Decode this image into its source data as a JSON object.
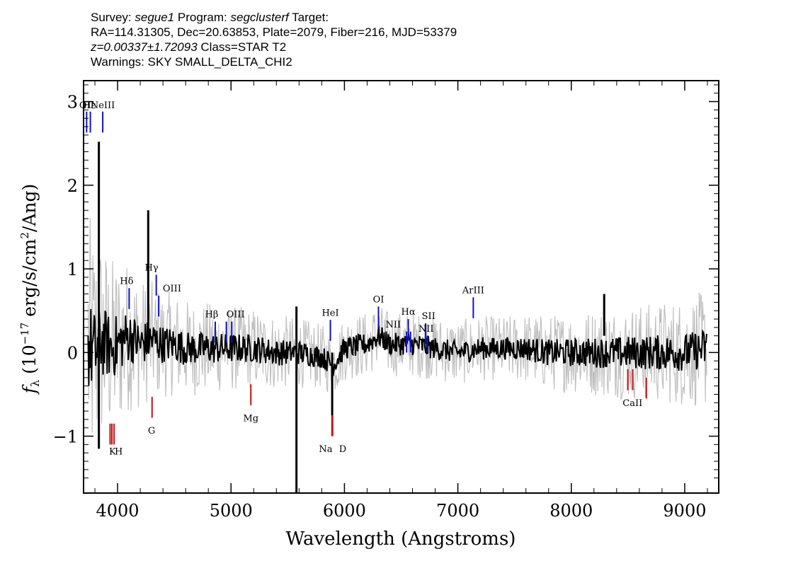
{
  "header": {
    "line1": {
      "survey_label": "Survey: ",
      "survey": "segue1",
      "program_label": " Program: ",
      "program": "segclusterf",
      "target_label": " Target:"
    },
    "line2": "RA=114.31305, Dec=20.63853, Plate=2079, Fiber=216, MJD=53379",
    "line3": {
      "z": "z=0.00337±1.72093",
      "class": " Class=STAR T2"
    },
    "line4": "Warnings: SKY SMALL_DELTA_CHI2"
  },
  "chart_data": {
    "type": "line",
    "xlabel": "Wavelength (Angstroms)",
    "ylabel": "f_λ (10^-17 erg/s/cm^2/Ang)",
    "ylabel_parts": {
      "f": "f",
      "sub": "λ",
      "a": " (10",
      "exp1": "−17",
      "b": " erg/s/cm",
      "exp2": "2",
      "c": "/Ang)"
    },
    "xlim": [
      3700,
      9300
    ],
    "ylim": [
      -1.68,
      3.25
    ],
    "x_ticks": [
      4000,
      5000,
      6000,
      7000,
      8000,
      9000
    ],
    "x_tick_labels": [
      "4000",
      "5000",
      "6000",
      "7000",
      "8000",
      "9000"
    ],
    "y_ticks": [
      -1,
      0,
      1,
      2,
      3
    ],
    "y_tick_labels": [
      "−1",
      "0",
      "1",
      "2",
      "3"
    ],
    "series": [
      {
        "role": "flux",
        "color": "#000000",
        "x": [
          3720,
          3760,
          3800,
          3850,
          3900,
          3950,
          4000,
          4100,
          4200,
          4300,
          4400,
          4500,
          4600,
          4800,
          5000,
          5200,
          5400,
          5600,
          5800,
          5900,
          6000,
          6200,
          6300,
          6400,
          6600,
          6800,
          7000,
          7200,
          7400,
          7600,
          7800,
          8000,
          8200,
          8400,
          8600,
          8800,
          9000,
          9200
        ],
        "y": [
          0.1,
          0.05,
          0.0,
          0.15,
          0.1,
          0.05,
          0.1,
          0.2,
          0.1,
          0.15,
          0.1,
          0.1,
          0.05,
          0.05,
          0.05,
          0.05,
          0.0,
          0.0,
          -0.05,
          -0.15,
          0.05,
          0.1,
          0.2,
          0.1,
          0.1,
          0.05,
          0.0,
          0.05,
          0.05,
          0.05,
          0.0,
          0.0,
          0.0,
          0.0,
          0.0,
          0.0,
          0.0,
          0.05
        ]
      },
      {
        "role": "error_envelope",
        "color": "#bdbdbd",
        "x": [
          3720,
          3800,
          3900,
          4000,
          4200,
          4400,
          4600,
          5000,
          5400,
          5800,
          6200,
          6600,
          7000,
          7400,
          7800,
          8200,
          8600,
          9000,
          9200
        ],
        "y": [
          1.3,
          1.1,
          0.9,
          0.8,
          0.6,
          0.5,
          0.45,
          0.4,
          0.35,
          0.3,
          0.3,
          0.3,
          0.3,
          0.3,
          0.35,
          0.4,
          0.45,
          0.5,
          0.55
        ]
      }
    ],
    "spikes": [
      {
        "x": 3835,
        "top": 2.52,
        "bottom": -1.15
      },
      {
        "x": 4270,
        "top": 1.7,
        "bottom": 0.0
      },
      {
        "x": 5577,
        "top": 0.55,
        "bottom": -1.68
      },
      {
        "x": 5892,
        "top": 0.0,
        "bottom": -0.75
      },
      {
        "x": 8290,
        "top": 0.7,
        "bottom": 0.2
      }
    ],
    "emission_lines": [
      {
        "label": "OII",
        "x": 3727,
        "y_top": 2.88,
        "y_bot": 2.63,
        "lx": 3727,
        "ly": 2.92
      },
      {
        "label": "Hε",
        "x": 3760,
        "y_top": 2.88,
        "y_bot": 2.63,
        "lx": 3752,
        "ly": 2.92
      },
      {
        "label": "NeIII",
        "x": 3869,
        "y_top": 2.88,
        "y_bot": 2.63,
        "lx": 3869,
        "ly": 2.92
      },
      {
        "label": "Hδ",
        "x": 4102,
        "y_top": 0.77,
        "y_bot": 0.52,
        "lx": 4080,
        "ly": 0.82
      },
      {
        "label": "Hγ",
        "x": 4341,
        "y_top": 0.93,
        "y_bot": 0.68,
        "lx": 4300,
        "ly": 0.98
      },
      {
        "label": "OIII",
        "x": 4363,
        "y_top": 0.68,
        "y_bot": 0.43,
        "lx": 4480,
        "ly": 0.73
      },
      {
        "label": "Hβ",
        "x": 4861,
        "y_top": 0.37,
        "y_bot": 0.12,
        "lx": 4830,
        "ly": 0.42
      },
      {
        "label": "OIII",
        "x": 4959,
        "y_top": 0.37,
        "y_bot": 0.12,
        "lx": 5040,
        "ly": 0.42
      },
      {
        "label": "OIII",
        "x": 5007,
        "y_top": 0.37,
        "y_bot": 0.12
      },
      {
        "label": "HeI",
        "x": 5876,
        "y_top": 0.39,
        "y_bot": 0.14,
        "lx": 5876,
        "ly": 0.44
      },
      {
        "label": "OI",
        "x": 6300,
        "y_top": 0.55,
        "y_bot": 0.3,
        "lx": 6300,
        "ly": 0.6
      },
      {
        "label": "NII",
        "x": 6548,
        "y_top": 0.25,
        "y_bot": 0.0,
        "lx": 6430,
        "ly": 0.3
      },
      {
        "label": "Hα",
        "x": 6563,
        "y_top": 0.4,
        "y_bot": 0.15,
        "lx": 6563,
        "ly": 0.45
      },
      {
        "label": "NII",
        "x": 6583,
        "y_top": 0.25,
        "y_bot": 0.0
      },
      {
        "label": "SII",
        "x": 6716,
        "y_top": 0.35,
        "y_bot": 0.1,
        "lx": 6742,
        "ly": 0.4
      },
      {
        "label": "NII",
        "x": 6731,
        "y_top": 0.2,
        "y_bot": 0.0,
        "lx": 6720,
        "ly": 0.25
      }
    ],
    "extra_blue_lines": [
      {
        "label": "ArIII",
        "x": 7136,
        "y_top": 0.66,
        "y_bot": 0.41,
        "lx": 7136,
        "ly": 0.71
      }
    ],
    "absorption_lines": [
      {
        "label": "",
        "x": 3934,
        "y_top": -0.85,
        "y_bot": -1.1
      },
      {
        "label": "K",
        "x": 3950,
        "y_top": -0.85,
        "y_bot": -1.1,
        "lx": 3955,
        "ly": -1.22
      },
      {
        "label": "H",
        "x": 3969,
        "y_top": -0.85,
        "y_bot": -1.1,
        "lx": 4010,
        "ly": -1.22
      },
      {
        "label": "G",
        "x": 4304,
        "y_top": -0.53,
        "y_bot": -0.78,
        "lx": 4300,
        "ly": -0.97
      },
      {
        "label": "Mg",
        "x": 5175,
        "y_top": -0.38,
        "y_bot": -0.63,
        "lx": 5175,
        "ly": -0.82
      },
      {
        "label": "Na",
        "x": 5890,
        "y_top": -0.75,
        "y_bot": -1.0,
        "lx": 5835,
        "ly": -1.19
      },
      {
        "label": "D",
        "x": 5896,
        "y_top": -0.75,
        "y_bot": -1.0,
        "lx": 5985,
        "ly": -1.19
      },
      {
        "label": "CaII",
        "x": 8498,
        "y_top": -0.2,
        "y_bot": -0.45,
        "lx": 8540,
        "ly": -0.64
      },
      {
        "label": "",
        "x": 8542,
        "y_top": -0.2,
        "y_bot": -0.45
      },
      {
        "label": "",
        "x": 8662,
        "y_top": -0.3,
        "y_bot": -0.55
      }
    ],
    "colors": {
      "emission": "#1010c8",
      "absorption": "#c81010",
      "flux": "#000000",
      "error": "#bdbdbd"
    },
    "grid": false
  }
}
